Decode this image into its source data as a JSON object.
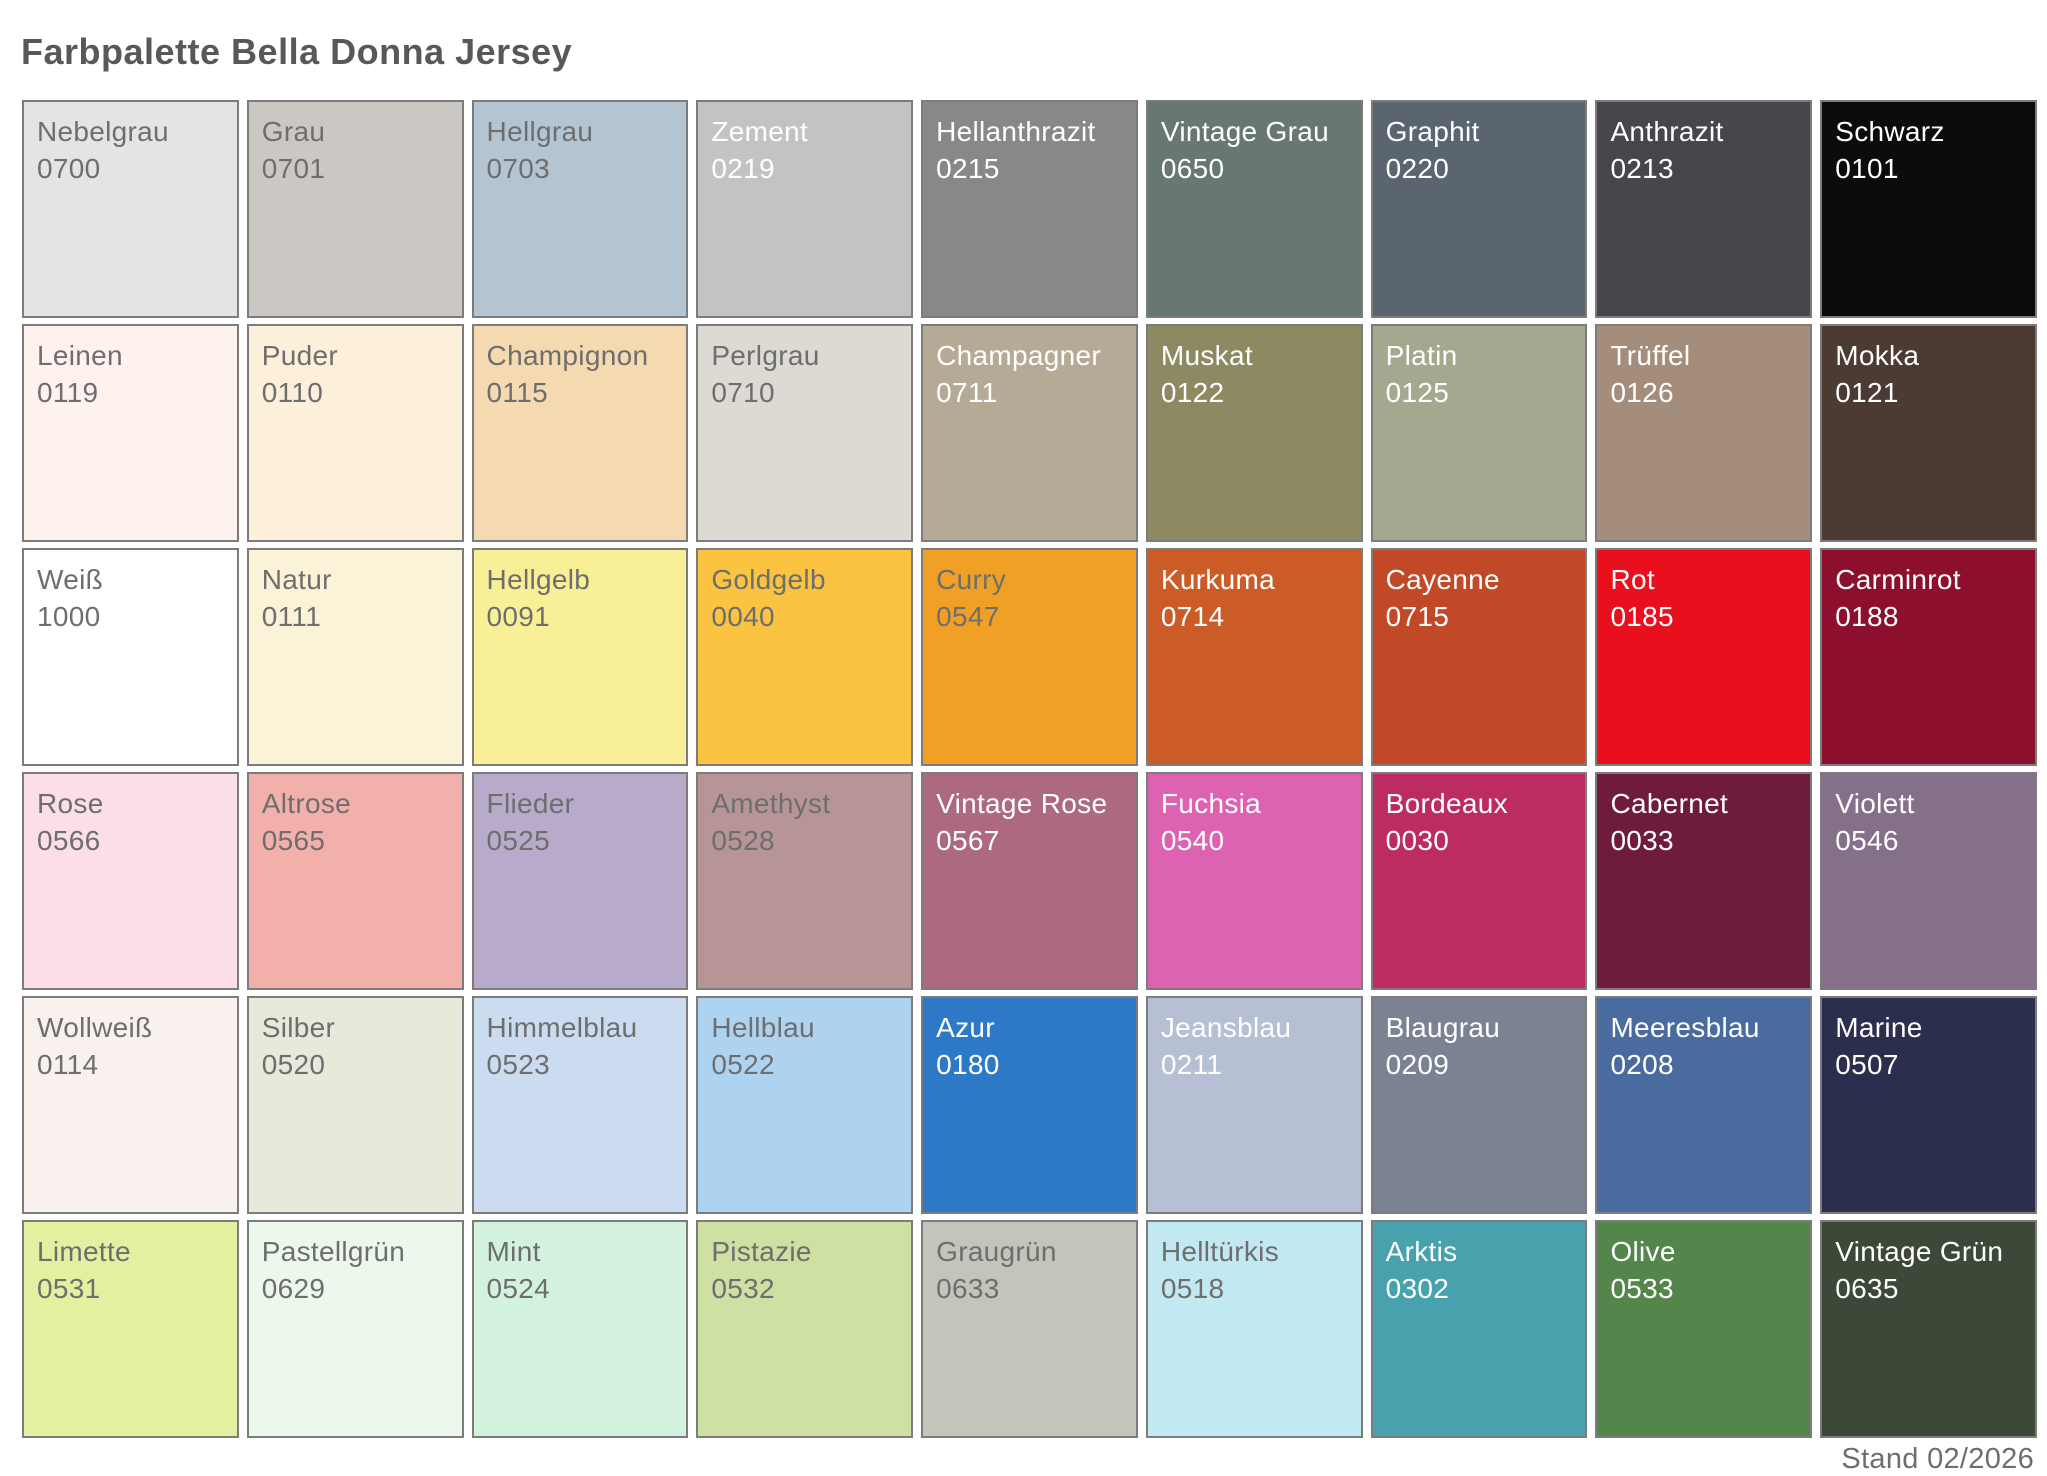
{
  "title": "Farbpalette Bella Donna Jersey",
  "footer": "Stand 02/2026",
  "colors": {
    "background": "#ffffff",
    "border": "#7c7c7c",
    "text_dark": "#6e6e6e",
    "text_light": "#ffffff",
    "title": "#58585a",
    "footer_text": "#6e6e6e"
  },
  "palette": {
    "swatches": [
      {
        "name": "Nebelgrau",
        "code": "0700",
        "color": "#e4e4e2",
        "text": "dark"
      },
      {
        "name": "Grau",
        "code": "0701",
        "color": "#cbc7c3",
        "text": "dark"
      },
      {
        "name": "Hellgrau",
        "code": "0703",
        "color": "#b4c5d1",
        "text": "dark"
      },
      {
        "name": "Zement",
        "code": "0219",
        "color": "#c3c3c1",
        "text": "light"
      },
      {
        "name": "Hellanthrazit",
        "code": "0215",
        "color": "#8a8886",
        "text": "light"
      },
      {
        "name": "Vintage Grau",
        "code": "0650",
        "color": "#697772",
        "text": "light"
      },
      {
        "name": "Graphit",
        "code": "0220",
        "color": "#5a6570",
        "text": "light"
      },
      {
        "name": "Anthrazit",
        "code": "0213",
        "color": "#48454b",
        "text": "light"
      },
      {
        "name": "Schwarz",
        "code": "0101",
        "color": "#0c0c0c",
        "text": "light"
      },
      {
        "name": "Leinen",
        "code": "0119",
        "color": "#fdf2ee",
        "text": "dark"
      },
      {
        "name": "Puder",
        "code": "0110",
        "color": "#fdf0da",
        "text": "dark"
      },
      {
        "name": "Champignon",
        "code": "0115",
        "color": "#f5d9b1",
        "text": "dark"
      },
      {
        "name": "Perlgrau",
        "code": "0710",
        "color": "#dcdad2",
        "text": "dark"
      },
      {
        "name": "Champagner",
        "code": "0711",
        "color": "#b4aa96",
        "text": "light"
      },
      {
        "name": "Muskat",
        "code": "0122",
        "color": "#8c8963",
        "text": "light"
      },
      {
        "name": "Platin",
        "code": "0125",
        "color": "#a6a78f",
        "text": "light"
      },
      {
        "name": "Trüffel",
        "code": "0126",
        "color": "#a48d7b",
        "text": "light"
      },
      {
        "name": "Mokka",
        "code": "0121",
        "color": "#4b3b33",
        "text": "light"
      },
      {
        "name": "Weiß",
        "code": "1000",
        "color": "#ffffff",
        "text": "dark"
      },
      {
        "name": "Natur",
        "code": "0111",
        "color": "#faf3d7",
        "text": "dark"
      },
      {
        "name": "Hellgelb",
        "code": "0091",
        "color": "#f9ef97",
        "text": "dark"
      },
      {
        "name": "Goldgelb",
        "code": "0040",
        "color": "#fbc342",
        "text": "dark"
      },
      {
        "name": "Curry",
        "code": "0547",
        "color": "#f0a125",
        "text": "dark"
      },
      {
        "name": "Kurkuma",
        "code": "0714",
        "color": "#cb5b27",
        "text": "light"
      },
      {
        "name": "Cayenne",
        "code": "0715",
        "color": "#c24927",
        "text": "light"
      },
      {
        "name": "Rot",
        "code": "0185",
        "color": "#e90f1d",
        "text": "light"
      },
      {
        "name": "Carminrot",
        "code": "0188",
        "color": "#8c102d",
        "text": "light"
      },
      {
        "name": "Rose",
        "code": "0566",
        "color": "#fbdee7",
        "text": "dark"
      },
      {
        "name": "Altrose",
        "code": "0565",
        "color": "#f2b0ab",
        "text": "dark"
      },
      {
        "name": "Flieder",
        "code": "0525",
        "color": "#b8aacb",
        "text": "dark"
      },
      {
        "name": "Amethyst",
        "code": "0528",
        "color": "#b79496",
        "text": "dark"
      },
      {
        "name": "Vintage Rose",
        "code": "0567",
        "color": "#ad6a7e",
        "text": "light"
      },
      {
        "name": "Fuchsia",
        "code": "0540",
        "color": "#de62b2",
        "text": "light"
      },
      {
        "name": "Bordeaux",
        "code": "0030",
        "color": "#bd2b63",
        "text": "light"
      },
      {
        "name": "Cabernet",
        "code": "0033",
        "color": "#6f1c3c",
        "text": "light"
      },
      {
        "name": "Violett",
        "code": "0546",
        "color": "#847189",
        "text": "light"
      },
      {
        "name": "Wollweiß",
        "code": "0114",
        "color": "#f9f1ee",
        "text": "dark"
      },
      {
        "name": "Silber",
        "code": "0520",
        "color": "#e6eadb",
        "text": "dark"
      },
      {
        "name": "Himmelblau",
        "code": "0523",
        "color": "#cbdcf1",
        "text": "dark"
      },
      {
        "name": "Hellblau",
        "code": "0522",
        "color": "#add3f0",
        "text": "dark"
      },
      {
        "name": "Azur",
        "code": "0180",
        "color": "#2e79c7",
        "text": "light"
      },
      {
        "name": "Jeansblau",
        "code": "0211",
        "color": "#b6bfd4",
        "text": "light"
      },
      {
        "name": "Blaugrau",
        "code": "0209",
        "color": "#7b8292",
        "text": "light"
      },
      {
        "name": "Meeresblau",
        "code": "0208",
        "color": "#4a6b9f",
        "text": "light"
      },
      {
        "name": "Marine",
        "code": "0507",
        "color": "#2b2e4d",
        "text": "light"
      },
      {
        "name": "Limette",
        "code": "0531",
        "color": "#e3f0a0",
        "text": "dark"
      },
      {
        "name": "Pastellgrün",
        "code": "0629",
        "color": "#ecf8ec",
        "text": "dark"
      },
      {
        "name": "Mint",
        "code": "0524",
        "color": "#d2f2de",
        "text": "dark"
      },
      {
        "name": "Pistazie",
        "code": "0532",
        "color": "#cee0a2",
        "text": "dark"
      },
      {
        "name": "Graugrün",
        "code": "0633",
        "color": "#c3c5ba",
        "text": "dark"
      },
      {
        "name": "Helltürkis",
        "code": "0518",
        "color": "#c2e9f1",
        "text": "dark"
      },
      {
        "name": "Arktis",
        "code": "0302",
        "color": "#47a2ad",
        "text": "light"
      },
      {
        "name": "Olive",
        "code": "0533",
        "color": "#54854b",
        "text": "light"
      },
      {
        "name": "Vintage Grün",
        "code": "0635",
        "color": "#3c4938",
        "text": "light"
      }
    ]
  }
}
